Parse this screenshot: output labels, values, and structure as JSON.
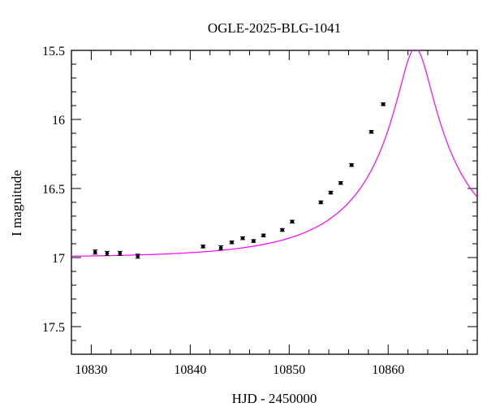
{
  "chart_data": {
    "type": "scatter",
    "title": "OGLE-2025-BLG-1041",
    "xlabel": "HJD - 2450000",
    "ylabel": "I magnitude",
    "xlim": [
      10828.0,
      10869.0
    ],
    "ylim": [
      17.7,
      15.5
    ],
    "y_inverted": true,
    "x_ticks": [
      10830,
      10840,
      10850,
      10860
    ],
    "y_ticks": [
      15.5,
      16,
      16.5,
      17,
      17.5
    ],
    "x_tick_labels": [
      "10830",
      "10840",
      "10850",
      "10860"
    ],
    "y_tick_labels": [
      "15.5",
      "16",
      "16.5",
      "17",
      "17.5"
    ],
    "x_minor_step": 2,
    "y_minor_step": 0.1,
    "grid": false,
    "series": [
      {
        "kind": "points",
        "color": "#000000",
        "x": [
          10830.4,
          10831.6,
          10832.9,
          10834.7,
          10841.3,
          10843.1,
          10844.2,
          10845.3,
          10846.4,
          10847.4,
          10849.3,
          10850.3,
          10853.2,
          10854.2,
          10855.2,
          10856.3,
          10858.3,
          10859.5
        ],
        "y": [
          16.96,
          16.97,
          16.97,
          16.99,
          16.92,
          16.93,
          16.89,
          16.86,
          16.88,
          16.84,
          16.8,
          16.74,
          16.6,
          16.53,
          16.46,
          16.33,
          16.09,
          15.89
        ],
        "err": [
          0.015,
          0.015,
          0.015,
          0.015,
          0.01,
          0.015,
          0.01,
          0.01,
          0.01,
          0.01,
          0.01,
          0.01,
          0.01,
          0.01,
          0.01,
          0.01,
          0.01,
          0.01
        ]
      },
      {
        "kind": "model-curve",
        "color": "#ff00ff",
        "model": {
          "t0": 10862.75,
          "tE": 12.0,
          "u0": 0.135,
          "I_base": 17.0,
          "I_peak": 15.485
        }
      }
    ]
  }
}
